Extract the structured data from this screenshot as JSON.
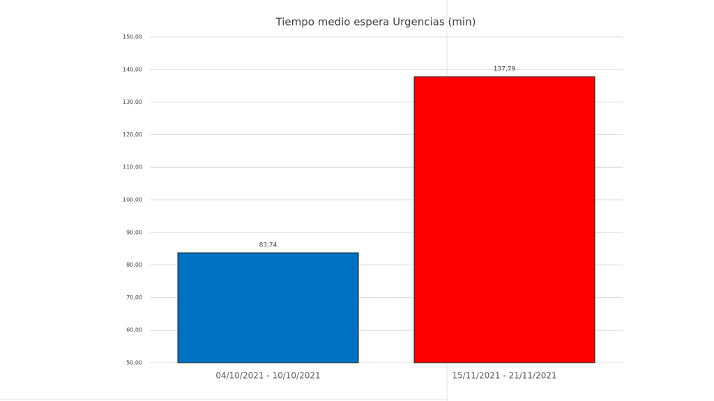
{
  "chart_data": {
    "type": "bar",
    "title": "Tiempo medio espera Urgencias (min)",
    "categories": [
      "04/10/2021 - 10/10/2021",
      "15/11/2021 - 21/11/2021"
    ],
    "values": [
      83.74,
      137.79
    ],
    "value_labels": [
      "83,74",
      "137,79"
    ],
    "colors": [
      "#0070c0",
      "#ff0000"
    ],
    "ylim": [
      50,
      150
    ],
    "yticks": [
      {
        "value": 50,
        "label": "50,00"
      },
      {
        "value": 60,
        "label": "60,00"
      },
      {
        "value": 70,
        "label": "70,00"
      },
      {
        "value": 80,
        "label": "80,00"
      },
      {
        "value": 90,
        "label": "90,00"
      },
      {
        "value": 100,
        "label": "100,00"
      },
      {
        "value": 110,
        "label": "110,00"
      },
      {
        "value": 120,
        "label": "120,00"
      },
      {
        "value": 130,
        "label": "130,00"
      },
      {
        "value": 140,
        "label": "140,00"
      },
      {
        "value": 150,
        "label": "150,00"
      }
    ],
    "grid": true
  }
}
